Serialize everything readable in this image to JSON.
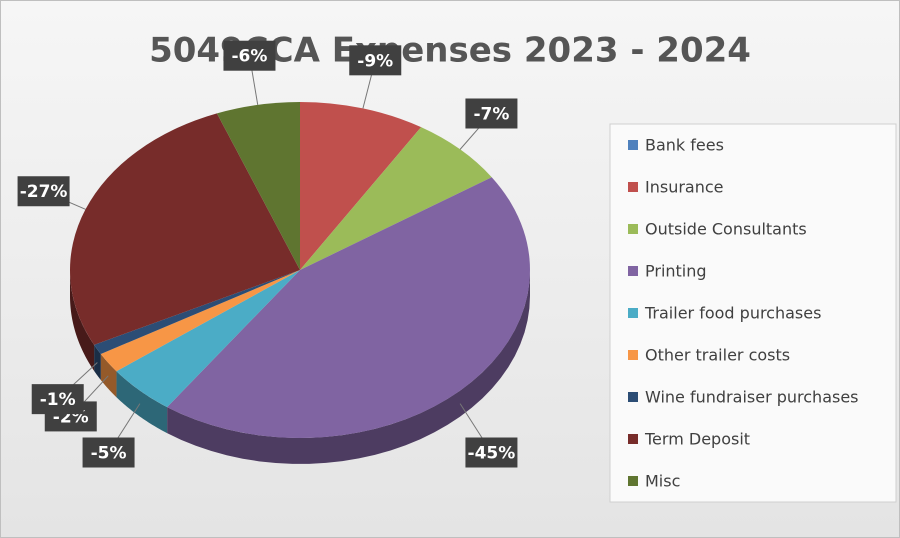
{
  "chart_data": {
    "type": "pie",
    "title": "5049CCA Expenses 2023 - 2024",
    "categories": [
      "Bank fees",
      "Insurance",
      "Outside Consultants",
      "Printing",
      "Trailer food purchases",
      "Other trailer costs",
      "Wine fundraiser purchases",
      "Term Deposit",
      "Misc"
    ],
    "values": [
      0,
      -9,
      -7,
      -45,
      -5,
      -2,
      -1,
      -27,
      -6
    ],
    "value_labels": [
      null,
      "-9%",
      "-7%",
      "-45%",
      "-5%",
      "-2%",
      "-1%",
      "-27%",
      "-6%"
    ],
    "colors": [
      "#4f81bd",
      "#c0504d",
      "#9bbb59",
      "#8064a2",
      "#4bacc6",
      "#f79646",
      "#2c4d75",
      "#772c2a",
      "#5f7530"
    ],
    "legend": "right",
    "3d": true
  }
}
